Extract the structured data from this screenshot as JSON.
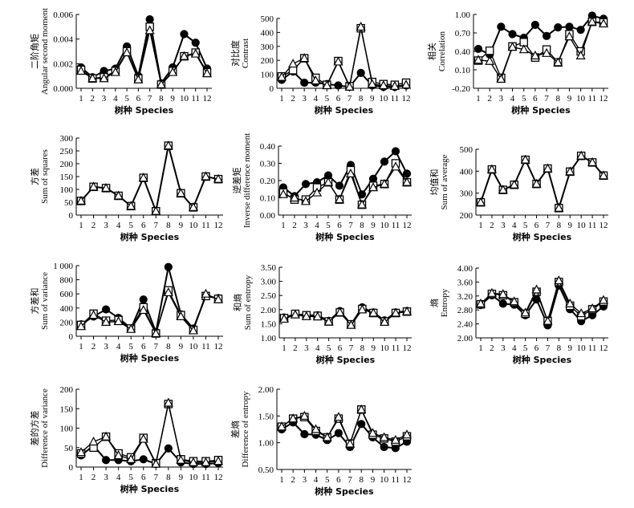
{
  "chart_data": [
    {
      "type": "line",
      "ylabel_cn": "二阶角矩",
      "ylabel": "Angular second moment",
      "xlabel": "树种 Species",
      "categories": [
        "1",
        "2",
        "3",
        "4",
        "5",
        "6",
        "7",
        "8",
        "9",
        "10",
        "11",
        "12"
      ],
      "ylim": [
        0,
        0.006
      ],
      "yticks": [
        "0.000",
        "0.002",
        "0.004",
        "0.006"
      ],
      "series": [
        {
          "name": "circle",
          "values": [
            0.0017,
            0.0009,
            0.0014,
            0.0016,
            0.0034,
            0.001,
            0.0056,
            0.0004,
            0.0017,
            0.0044,
            0.0037,
            0.0016
          ]
        },
        {
          "name": "square",
          "values": [
            0.0015,
            0.0008,
            0.0009,
            0.0014,
            0.003,
            0.0008,
            0.005,
            0.0003,
            0.0014,
            0.0026,
            0.0029,
            0.0013
          ]
        },
        {
          "name": "triangle",
          "values": [
            0.0014,
            0.0008,
            0.0008,
            0.0013,
            0.0029,
            0.0007,
            0.0047,
            0.0003,
            0.0013,
            0.0026,
            0.0028,
            0.0012
          ]
        }
      ]
    },
    {
      "type": "line",
      "ylabel_cn": "对比度",
      "ylabel": "Contrast",
      "xlabel": "树种 Species",
      "categories": [
        "1",
        "2",
        "3",
        "4",
        "5",
        "6",
        "7",
        "8",
        "9",
        "10",
        "11",
        "12"
      ],
      "ylim": [
        0,
        500
      ],
      "yticks": [
        "0",
        "100",
        "200",
        "300",
        "400",
        "500"
      ],
      "series": [
        {
          "name": "circle",
          "values": [
            60,
            120,
            40,
            40,
            30,
            20,
            10,
            110,
            20,
            10,
            10,
            20
          ]
        },
        {
          "name": "square",
          "values": [
            85,
            130,
            215,
            75,
            25,
            195,
            15,
            430,
            45,
            30,
            25,
            40
          ]
        },
        {
          "name": "triangle",
          "values": [
            80,
            175,
            215,
            55,
            20,
            190,
            10,
            440,
            30,
            20,
            15,
            25
          ]
        }
      ]
    },
    {
      "type": "line",
      "ylabel_cn": "相关",
      "ylabel": "Correlation",
      "xlabel": "树种 Species",
      "categories": [
        "1",
        "2",
        "3",
        "4",
        "5",
        "6",
        "7",
        "8",
        "9",
        "10",
        "11",
        "12"
      ],
      "ylim": [
        -0.2,
        1.0
      ],
      "yticks": [
        "-0.20",
        "0.10",
        "0.40",
        "0.70",
        "1.00"
      ],
      "series": [
        {
          "name": "circle",
          "values": [
            0.44,
            0.35,
            0.8,
            0.68,
            0.62,
            0.83,
            0.65,
            0.79,
            0.8,
            0.75,
            0.98,
            0.93
          ]
        },
        {
          "name": "square",
          "values": [
            0.25,
            0.41,
            -0.03,
            0.48,
            0.55,
            0.3,
            0.43,
            0.22,
            0.68,
            0.4,
            0.88,
            0.87
          ]
        },
        {
          "name": "triangle",
          "values": [
            0.26,
            0.24,
            -0.05,
            0.47,
            0.43,
            0.33,
            0.37,
            0.22,
            0.64,
            0.33,
            0.88,
            0.85
          ]
        }
      ]
    },
    {
      "type": "line",
      "ylabel_cn": "方差",
      "ylabel": "Sum of squares",
      "xlabel": "树种 Species",
      "categories": [
        "1",
        "2",
        "3",
        "4",
        "5",
        "6",
        "7",
        "8",
        "9",
        "10",
        "11",
        "12"
      ],
      "ylim": [
        0,
        300
      ],
      "yticks": [
        "0",
        "50",
        "100",
        "150",
        "200",
        "250",
        "300"
      ],
      "series": [
        {
          "name": "circle",
          "values": [
            55,
            110,
            105,
            75,
            35,
            145,
            15,
            270,
            85,
            30,
            150,
            140
          ]
        },
        {
          "name": "square",
          "values": [
            55,
            110,
            105,
            75,
            35,
            145,
            15,
            270,
            85,
            30,
            150,
            140
          ]
        },
        {
          "name": "triangle",
          "values": [
            55,
            110,
            105,
            75,
            35,
            145,
            15,
            270,
            85,
            30,
            150,
            140
          ]
        }
      ]
    },
    {
      "type": "line",
      "ylabel_cn": "逆差矩",
      "ylabel": "Inverse difference moment",
      "xlabel": "树种 Species",
      "categories": [
        "1",
        "2",
        "3",
        "4",
        "5",
        "6",
        "7",
        "8",
        "9",
        "10",
        "11",
        "12"
      ],
      "ylim": [
        0,
        0.4
      ],
      "yticks": [
        "0.00",
        "0.10",
        "0.20",
        "0.30",
        "0.40"
      ],
      "series": [
        {
          "name": "circle",
          "values": [
            0.16,
            0.11,
            0.18,
            0.19,
            0.23,
            0.17,
            0.29,
            0.12,
            0.21,
            0.31,
            0.37,
            0.24
          ]
        },
        {
          "name": "square",
          "values": [
            0.13,
            0.09,
            0.09,
            0.16,
            0.19,
            0.09,
            0.26,
            0.06,
            0.17,
            0.18,
            0.3,
            0.19
          ]
        },
        {
          "name": "triangle",
          "values": [
            0.12,
            0.1,
            0.08,
            0.13,
            0.19,
            0.09,
            0.24,
            0.06,
            0.16,
            0.18,
            0.28,
            0.19
          ]
        }
      ]
    },
    {
      "type": "line",
      "ylabel_cn": "均值和",
      "ylabel": "Sum of average",
      "xlabel": "树种 Species",
      "categories": [
        "1",
        "2",
        "3",
        "4",
        "5",
        "6",
        "7",
        "8",
        "9",
        "10",
        "11",
        "12"
      ],
      "ylim": [
        200,
        500
      ],
      "yticks": [
        "200",
        "300",
        "400",
        "500"
      ],
      "series": [
        {
          "name": "circle",
          "values": [
            258,
            408,
            315,
            338,
            452,
            342,
            412,
            232,
            398,
            470,
            440,
            380
          ]
        },
        {
          "name": "square",
          "values": [
            258,
            408,
            315,
            338,
            452,
            342,
            412,
            232,
            398,
            470,
            440,
            380
          ]
        },
        {
          "name": "triangle",
          "values": [
            258,
            408,
            315,
            338,
            452,
            342,
            412,
            232,
            398,
            470,
            440,
            380
          ]
        }
      ]
    },
    {
      "type": "line",
      "ylabel_cn": "方差和",
      "ylabel": "Sum of variance",
      "xlabel": "树种 Species",
      "categories": [
        "1",
        "2",
        "3",
        "4",
        "5",
        "6",
        "7",
        "8",
        "9",
        "10",
        "11",
        "12"
      ],
      "ylim": [
        0,
        1000
      ],
      "yticks": [
        "0",
        "200",
        "400",
        "600",
        "800",
        "1 000"
      ],
      "series": [
        {
          "name": "circle",
          "values": [
            170,
            280,
            380,
            260,
            110,
            520,
            60,
            980,
            310,
            110,
            570,
            540
          ]
        },
        {
          "name": "square",
          "values": [
            160,
            320,
            220,
            230,
            110,
            410,
            40,
            650,
            300,
            90,
            570,
            530
          ]
        },
        {
          "name": "triangle",
          "values": [
            140,
            300,
            200,
            210,
            100,
            370,
            40,
            620,
            280,
            80,
            600,
            520
          ]
        }
      ]
    },
    {
      "type": "line",
      "ylabel_cn": "和熵",
      "ylabel": "Sum of entropy",
      "xlabel": "树种 Species",
      "categories": [
        "1",
        "2",
        "3",
        "4",
        "5",
        "6",
        "7",
        "8",
        "9",
        "10",
        "11",
        "12"
      ],
      "ylim": [
        1.0,
        3.5
      ],
      "yticks": [
        "1.00",
        "1.50",
        "2.00",
        "2.50",
        "3.00",
        "3.50"
      ],
      "series": [
        {
          "name": "circle",
          "values": [
            1.72,
            1.84,
            1.8,
            1.8,
            1.6,
            1.95,
            1.48,
            2.08,
            1.9,
            1.62,
            1.9,
            1.95
          ]
        },
        {
          "name": "square",
          "values": [
            1.7,
            1.85,
            1.8,
            1.78,
            1.58,
            1.9,
            1.48,
            2.02,
            1.88,
            1.58,
            1.88,
            1.93
          ]
        },
        {
          "name": "triangle",
          "values": [
            1.67,
            1.82,
            1.76,
            1.75,
            1.57,
            1.9,
            1.45,
            2.0,
            1.88,
            1.56,
            1.88,
            1.93
          ]
        }
      ]
    },
    {
      "type": "line",
      "ylabel_cn": "熵",
      "ylabel": "Entropy",
      "xlabel": "树种 Species",
      "categories": [
        "1",
        "2",
        "3",
        "4",
        "5",
        "6",
        "7",
        "8",
        "9",
        "10",
        "11",
        "12"
      ],
      "ylim": [
        2.0,
        4.0
      ],
      "yticks": [
        "2.00",
        "2.40",
        "2.80",
        "3.20",
        "3.60",
        "4.00"
      ],
      "series": [
        {
          "name": "circle",
          "values": [
            2.94,
            3.22,
            2.98,
            2.95,
            2.65,
            3.1,
            2.36,
            3.5,
            2.82,
            2.48,
            2.65,
            2.9
          ]
        },
        {
          "name": "square",
          "values": [
            2.96,
            3.26,
            3.22,
            3.02,
            2.69,
            3.32,
            2.48,
            3.6,
            2.92,
            2.62,
            2.82,
            3.04
          ]
        },
        {
          "name": "triangle",
          "values": [
            2.98,
            3.28,
            3.25,
            3.04,
            2.72,
            3.38,
            2.48,
            3.64,
            2.98,
            2.7,
            2.84,
            3.08
          ]
        }
      ]
    },
    {
      "type": "line",
      "ylabel_cn": "差的方差",
      "ylabel": "Difference of variance",
      "xlabel": "树种 Species",
      "categories": [
        "1",
        "2",
        "3",
        "4",
        "5",
        "6",
        "7",
        "8",
        "9",
        "10",
        "11",
        "12"
      ],
      "ylim": [
        0,
        200
      ],
      "yticks": [
        "0",
        "50",
        "100",
        "150",
        "200"
      ],
      "series": [
        {
          "name": "circle",
          "values": [
            30,
            55,
            18,
            18,
            15,
            20,
            8,
            48,
            12,
            8,
            8,
            10
          ]
        },
        {
          "name": "square",
          "values": [
            35,
            50,
            78,
            35,
            25,
            75,
            10,
            162,
            20,
            15,
            15,
            18
          ]
        },
        {
          "name": "triangle",
          "values": [
            38,
            65,
            78,
            30,
            20,
            72,
            8,
            165,
            18,
            12,
            12,
            15
          ]
        }
      ]
    },
    {
      "type": "line",
      "ylabel_cn": "差熵",
      "ylabel": "Difference of entropy",
      "xlabel": "树种 Species",
      "categories": [
        "1",
        "2",
        "3",
        "4",
        "5",
        "6",
        "7",
        "8",
        "9",
        "10",
        "11",
        "12"
      ],
      "ylim": [
        0.5,
        2.0
      ],
      "yticks": [
        "0.50",
        "1.00",
        "1.50",
        "2.00"
      ],
      "series": [
        {
          "name": "circle",
          "values": [
            1.25,
            1.38,
            1.16,
            1.15,
            1.05,
            1.18,
            0.92,
            1.35,
            1.1,
            0.92,
            0.9,
            1.02
          ]
        },
        {
          "name": "square",
          "values": [
            1.3,
            1.45,
            1.48,
            1.22,
            1.1,
            1.45,
            0.98,
            1.62,
            1.15,
            1.08,
            1.02,
            1.12
          ]
        },
        {
          "name": "triangle",
          "values": [
            1.3,
            1.45,
            1.5,
            1.25,
            1.1,
            1.48,
            0.98,
            1.62,
            1.18,
            1.1,
            1.05,
            1.15
          ]
        }
      ]
    }
  ]
}
